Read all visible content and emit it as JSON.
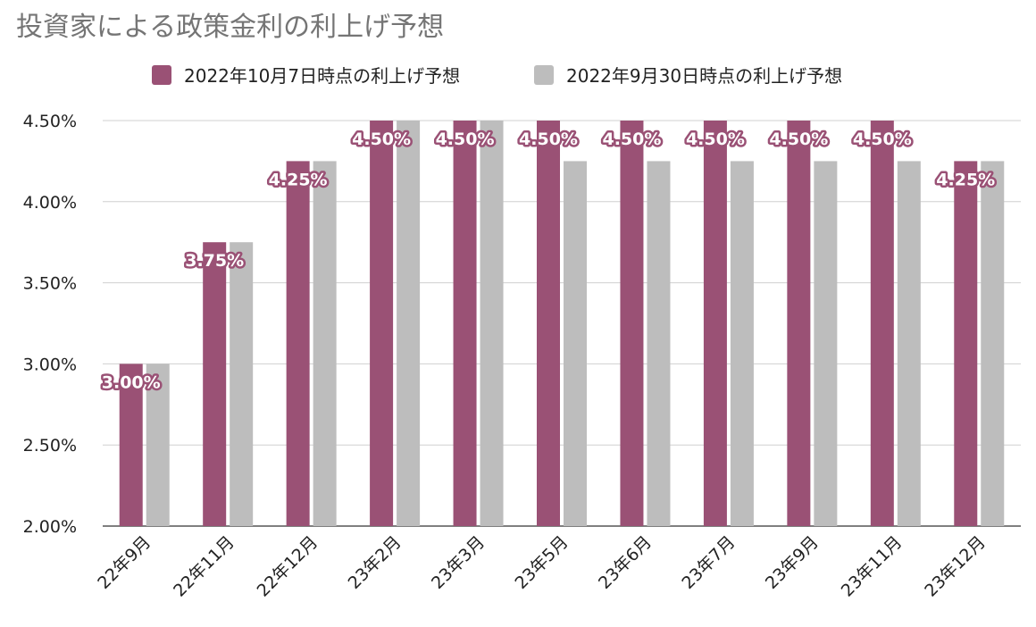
{
  "chart_data": {
    "type": "bar",
    "title": "投資家による政策金利の利上げ予想",
    "xlabel": "",
    "ylabel": "",
    "categories": [
      "22年9月",
      "22年11月",
      "22年12月",
      "23年2月",
      "23年3月",
      "23年5月",
      "23年6月",
      "23年7月",
      "23年9月",
      "23年11月",
      "23年12月"
    ],
    "series": [
      {
        "name": "2022年10月7日時点の利上げ予想",
        "color": "#9a5175",
        "values": [
          3.0,
          3.75,
          4.25,
          4.5,
          4.5,
          4.5,
          4.5,
          4.5,
          4.5,
          4.5,
          4.25
        ],
        "labels": [
          "3.00%",
          "3.75%",
          "4.25%",
          "4.50%",
          "4.50%",
          "4.50%",
          "4.50%",
          "4.50%",
          "4.50%",
          "4.50%",
          "4.25%"
        ]
      },
      {
        "name": "2022年9月30日時点の利上げ予想",
        "color": "#bdbdbd",
        "values": [
          3.0,
          3.75,
          4.25,
          4.5,
          4.5,
          4.25,
          4.25,
          4.25,
          4.25,
          4.25,
          4.25
        ]
      }
    ],
    "ylim": [
      2.0,
      4.5
    ],
    "yticks": [
      2.0,
      2.5,
      3.0,
      3.5,
      4.0,
      4.5
    ],
    "ytick_labels": [
      "2.00%",
      "2.50%",
      "3.00%",
      "3.50%",
      "4.00%",
      "4.50%"
    ],
    "grid": true,
    "legend_position": "top-center"
  }
}
